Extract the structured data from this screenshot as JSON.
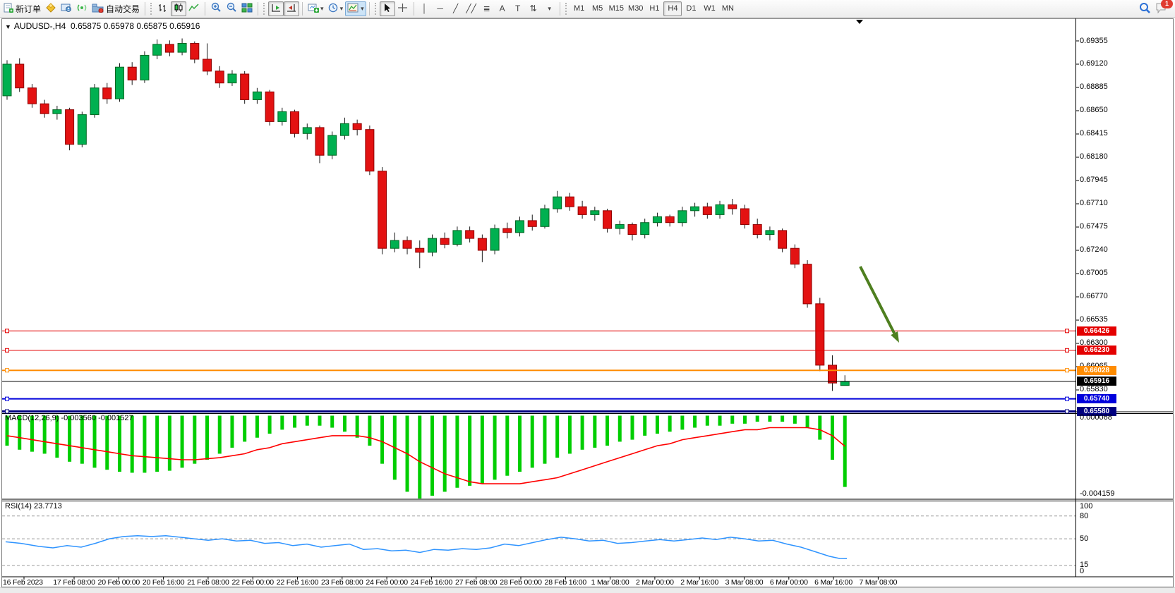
{
  "toolbar": {
    "new_order_label": "新订单",
    "autotrade_label": "自动交易",
    "timeframe_buttons": [
      "M1",
      "M5",
      "M15",
      "M30",
      "H1",
      "H4",
      "D1",
      "W1",
      "MN"
    ],
    "active_timeframe": "H4",
    "notification_badge": "1",
    "icons": {
      "caret_down": "▾",
      "crosshair": "+",
      "zoom_in_sign": "+",
      "zoom_out_sign": "−"
    },
    "tool_glyphs": [
      {
        "name": "vertical-line-tool",
        "glyph": "│"
      },
      {
        "name": "horizontal-line-tool",
        "glyph": "─"
      },
      {
        "name": "trendline-tool",
        "glyph": "╱"
      },
      {
        "name": "equidistant-channel-tool",
        "glyph": "╱╱"
      },
      {
        "name": "fibonacci-tool",
        "glyph": "≣"
      },
      {
        "name": "text-tool",
        "glyph": "A"
      },
      {
        "name": "text-label-tool",
        "glyph": "T"
      },
      {
        "name": "arrows-tool",
        "glyph": "⇅"
      }
    ]
  },
  "chart": {
    "title": "AUDUSD-,H4",
    "ohlc": "0.65875 0.65978 0.65875 0.65916",
    "macd_label": "MACD(12,26,9) -0.003560 -0.001527",
    "rsi_label": "RSI(14) 23.7713",
    "macd_scale_top": "0.000068",
    "macd_scale_bottom": "-0.004159",
    "rsi_scale_labels": [
      "100",
      "80",
      "50",
      "15",
      "0"
    ]
  },
  "chart_data": {
    "type": "candlestick",
    "symbol": "AUDUSD-",
    "period": "H4",
    "title": "AUDUSD-,H4  0.65875 0.65978 0.65875 0.65916",
    "price_axis_ticks": [
      "0.69355",
      "0.69120",
      "0.68885",
      "0.68650",
      "0.68415",
      "0.68180",
      "0.67945",
      "0.67710",
      "0.67475",
      "0.67240",
      "0.67005",
      "0.66770",
      "0.66535",
      "0.66300",
      "0.66065",
      "0.65830"
    ],
    "time_axis_labels": [
      "16 Feb 2023",
      "17 Feb 08:00",
      "20 Feb 00:00",
      "20 Feb 16:00",
      "21 Feb 08:00",
      "22 Feb 00:00",
      "22 Feb 16:00",
      "23 Feb 08:00",
      "24 Feb 00:00",
      "24 Feb 16:00",
      "27 Feb 08:00",
      "28 Feb 00:00",
      "28 Feb 16:00",
      "1 Mar 08:00",
      "2 Mar 00:00",
      "2 Mar 16:00",
      "3 Mar 08:00",
      "6 Mar 00:00",
      "6 Mar 16:00",
      "7 Mar 08:00"
    ],
    "levels": [
      {
        "price": "0.66426",
        "value": 0.66426,
        "color": "#e40000",
        "width": 1,
        "handles": true
      },
      {
        "price": "0.66230",
        "value": 0.6623,
        "color": "#e40000",
        "width": 1,
        "handles": true
      },
      {
        "price": "0.66028",
        "value": 0.66028,
        "color": "#ff8c00",
        "width": 2,
        "handles": true
      },
      {
        "price": "0.65916",
        "value": 0.65916,
        "color": "#000000",
        "width": 1,
        "handles": false
      },
      {
        "price": "0.65740",
        "value": 0.6574,
        "color": "#0000dc",
        "width": 2,
        "handles": true
      },
      {
        "price": "0.65580",
        "value": 0.6558,
        "color": "#000080",
        "width": 3,
        "handles": true,
        "y_override": 583.5
      }
    ],
    "colors": {
      "up_fill": "#00b050",
      "up_stroke": "#006622",
      "down_fill": "#e31212",
      "down_stroke": "#8f0000",
      "wick": "#1a1a1a",
      "macd_hist": "#00ce00",
      "macd_signal": "#ff0000",
      "rsi_line": "#2f94ff",
      "rsi_level": "#9b9b9b",
      "arrow": "#4e7f1f"
    },
    "candles": [
      [
        0.688,
        0.6916,
        0.6876,
        0.6912
      ],
      [
        0.6912,
        0.6918,
        0.6884,
        0.6888
      ],
      [
        0.6888,
        0.6892,
        0.6868,
        0.6872
      ],
      [
        0.6872,
        0.6876,
        0.6858,
        0.6862
      ],
      [
        0.6862,
        0.687,
        0.6856,
        0.6866
      ],
      [
        0.6866,
        0.6868,
        0.6825,
        0.6831
      ],
      [
        0.6831,
        0.6864,
        0.6828,
        0.6861
      ],
      [
        0.6861,
        0.6892,
        0.6858,
        0.6888
      ],
      [
        0.6888,
        0.6893,
        0.6872,
        0.6877
      ],
      [
        0.6877,
        0.6913,
        0.6874,
        0.6909
      ],
      [
        0.6909,
        0.6914,
        0.6891,
        0.6896
      ],
      [
        0.6896,
        0.6925,
        0.6893,
        0.6921
      ],
      [
        0.6921,
        0.6937,
        0.6917,
        0.6932
      ],
      [
        0.6932,
        0.6936,
        0.692,
        0.6924
      ],
      [
        0.6924,
        0.6938,
        0.6921,
        0.6933
      ],
      [
        0.6933,
        0.6935,
        0.6913,
        0.6917
      ],
      [
        0.6917,
        0.6933,
        0.6901,
        0.6905
      ],
      [
        0.6905,
        0.691,
        0.6888,
        0.6893
      ],
      [
        0.6893,
        0.6906,
        0.689,
        0.6902
      ],
      [
        0.6902,
        0.6905,
        0.6872,
        0.6876
      ],
      [
        0.6876,
        0.6888,
        0.6872,
        0.6884
      ],
      [
        0.6884,
        0.6886,
        0.685,
        0.6854
      ],
      [
        0.6854,
        0.6868,
        0.685,
        0.6864
      ],
      [
        0.6864,
        0.6866,
        0.6838,
        0.6842
      ],
      [
        0.6842,
        0.6852,
        0.6836,
        0.6848
      ],
      [
        0.6848,
        0.685,
        0.6812,
        0.682
      ],
      [
        0.682,
        0.6844,
        0.6816,
        0.684
      ],
      [
        0.684,
        0.6858,
        0.6836,
        0.6852
      ],
      [
        0.6852,
        0.6856,
        0.684,
        0.6846
      ],
      [
        0.6846,
        0.685,
        0.68,
        0.6804
      ],
      [
        0.6804,
        0.6808,
        0.672,
        0.6726
      ],
      [
        0.6726,
        0.6742,
        0.6722,
        0.6734
      ],
      [
        0.6734,
        0.6738,
        0.672,
        0.6726
      ],
      [
        0.6726,
        0.6734,
        0.6706,
        0.6722
      ],
      [
        0.6722,
        0.674,
        0.6718,
        0.6736
      ],
      [
        0.6736,
        0.6742,
        0.6726,
        0.673
      ],
      [
        0.673,
        0.6748,
        0.6728,
        0.6744
      ],
      [
        0.6744,
        0.6748,
        0.6732,
        0.6736
      ],
      [
        0.6736,
        0.674,
        0.6712,
        0.6724
      ],
      [
        0.6724,
        0.675,
        0.672,
        0.6746
      ],
      [
        0.6746,
        0.6752,
        0.6736,
        0.6742
      ],
      [
        0.6742,
        0.6758,
        0.6738,
        0.6754
      ],
      [
        0.6754,
        0.676,
        0.6744,
        0.6748
      ],
      [
        0.6748,
        0.677,
        0.6746,
        0.6766
      ],
      [
        0.6766,
        0.6784,
        0.6762,
        0.6778
      ],
      [
        0.6778,
        0.6782,
        0.6764,
        0.6768
      ],
      [
        0.6768,
        0.6774,
        0.6756,
        0.676
      ],
      [
        0.676,
        0.6768,
        0.6754,
        0.6764
      ],
      [
        0.6764,
        0.6766,
        0.6742,
        0.6746
      ],
      [
        0.6746,
        0.6754,
        0.674,
        0.675
      ],
      [
        0.675,
        0.6752,
        0.6734,
        0.674
      ],
      [
        0.674,
        0.6756,
        0.6736,
        0.6752
      ],
      [
        0.6752,
        0.6762,
        0.6748,
        0.6758
      ],
      [
        0.6758,
        0.676,
        0.6748,
        0.6752
      ],
      [
        0.6752,
        0.6768,
        0.6748,
        0.6764
      ],
      [
        0.6764,
        0.6772,
        0.6758,
        0.6768
      ],
      [
        0.6768,
        0.6772,
        0.6756,
        0.676
      ],
      [
        0.676,
        0.6774,
        0.6756,
        0.677
      ],
      [
        0.677,
        0.6776,
        0.676,
        0.6766
      ],
      [
        0.6766,
        0.677,
        0.6746,
        0.675
      ],
      [
        0.675,
        0.6756,
        0.6736,
        0.674
      ],
      [
        0.674,
        0.6748,
        0.6734,
        0.6744
      ],
      [
        0.6744,
        0.6746,
        0.6722,
        0.6726
      ],
      [
        0.6726,
        0.673,
        0.6706,
        0.671
      ],
      [
        0.671,
        0.6714,
        0.6666,
        0.667
      ],
      [
        0.667,
        0.6676,
        0.6602,
        0.6608
      ],
      [
        0.6608,
        0.6618,
        0.6582,
        0.659
      ],
      [
        0.65875,
        0.65978,
        0.65875,
        0.65916
      ]
    ],
    "macd": {
      "histogram": [
        -0.0015,
        -0.0017,
        -0.0018,
        -0.0019,
        -0.0021,
        -0.0023,
        -0.0024,
        -0.0026,
        -0.0027,
        -0.0028,
        -0.00285,
        -0.00285,
        -0.0028,
        -0.00275,
        -0.0026,
        -0.0024,
        -0.0022,
        -0.0019,
        -0.0016,
        -0.0013,
        -0.0011,
        -0.0009,
        -0.0007,
        -0.0006,
        -0.0005,
        -0.0005,
        -0.0006,
        -0.0008,
        -0.0011,
        -0.0015,
        -0.0024,
        -0.0032,
        -0.0038,
        -0.00416,
        -0.004,
        -0.0038,
        -0.0036,
        -0.0035,
        -0.0034,
        -0.0032,
        -0.003,
        -0.0028,
        -0.0026,
        -0.0024,
        -0.0021,
        -0.0019,
        -0.0017,
        -0.0016,
        -0.0015,
        -0.0013,
        -0.0012,
        -0.001,
        -0.0009,
        -0.0008,
        -0.0007,
        -0.0006,
        -0.0005,
        -0.0005,
        -0.0004,
        -0.0004,
        -0.0003,
        -0.0003,
        -0.0003,
        -0.0004,
        -0.0006,
        -0.0012,
        -0.0022,
        -0.00356
      ],
      "signal": [
        -0.001,
        -0.0011,
        -0.0012,
        -0.0013,
        -0.0014,
        -0.0015,
        -0.0016,
        -0.0017,
        -0.0018,
        -0.0019,
        -0.002,
        -0.00205,
        -0.0021,
        -0.00215,
        -0.0022,
        -0.0022,
        -0.00215,
        -0.0021,
        -0.002,
        -0.0019,
        -0.0017,
        -0.0016,
        -0.0014,
        -0.0013,
        -0.0012,
        -0.0011,
        -0.001,
        -0.001,
        -0.001,
        -0.0011,
        -0.0013,
        -0.0016,
        -0.0019,
        -0.0023,
        -0.0026,
        -0.0029,
        -0.0031,
        -0.0033,
        -0.0034,
        -0.0034,
        -0.0034,
        -0.0034,
        -0.0033,
        -0.0032,
        -0.0031,
        -0.0029,
        -0.0027,
        -0.0025,
        -0.0023,
        -0.0021,
        -0.0019,
        -0.0017,
        -0.0015,
        -0.0014,
        -0.0012,
        -0.0011,
        -0.001,
        -0.0009,
        -0.0008,
        -0.0007,
        -0.0007,
        -0.0006,
        -0.0006,
        -0.0006,
        -0.0006,
        -0.0007,
        -0.001,
        -0.001527
      ]
    },
    "rsi": {
      "period": 14,
      "current": 23.7713,
      "levels": [
        80,
        50,
        15
      ],
      "points": [
        [
          8,
          46
        ],
        [
          30,
          44
        ],
        [
          55,
          40
        ],
        [
          75,
          38
        ],
        [
          95,
          41
        ],
        [
          115,
          39
        ],
        [
          135,
          44
        ],
        [
          155,
          50
        ],
        [
          175,
          53
        ],
        [
          195,
          54
        ],
        [
          215,
          53
        ],
        [
          235,
          54
        ],
        [
          255,
          52
        ],
        [
          275,
          50
        ],
        [
          295,
          48
        ],
        [
          315,
          50
        ],
        [
          335,
          47
        ],
        [
          355,
          48
        ],
        [
          375,
          44
        ],
        [
          395,
          45
        ],
        [
          415,
          41
        ],
        [
          435,
          43
        ],
        [
          455,
          39
        ],
        [
          475,
          41
        ],
        [
          495,
          43
        ],
        [
          515,
          36
        ],
        [
          535,
          37
        ],
        [
          555,
          34
        ],
        [
          575,
          35
        ],
        [
          595,
          32
        ],
        [
          615,
          36
        ],
        [
          635,
          35
        ],
        [
          655,
          37
        ],
        [
          675,
          36
        ],
        [
          695,
          38
        ],
        [
          715,
          43
        ],
        [
          735,
          41
        ],
        [
          755,
          45
        ],
        [
          775,
          49
        ],
        [
          795,
          52
        ],
        [
          815,
          50
        ],
        [
          835,
          47
        ],
        [
          855,
          48
        ],
        [
          875,
          44
        ],
        [
          895,
          45
        ],
        [
          915,
          47
        ],
        [
          935,
          49
        ],
        [
          955,
          47
        ],
        [
          975,
          49
        ],
        [
          995,
          51
        ],
        [
          1015,
          49
        ],
        [
          1035,
          52
        ],
        [
          1055,
          50
        ],
        [
          1075,
          47
        ],
        [
          1095,
          48
        ],
        [
          1115,
          43
        ],
        [
          1135,
          39
        ],
        [
          1155,
          33
        ],
        [
          1175,
          27
        ],
        [
          1190,
          24
        ],
        [
          1200,
          23.8
        ]
      ]
    },
    "arrow_annotation": {
      "from": [
        1219,
        378
      ],
      "to": [
        1274,
        486
      ]
    }
  }
}
